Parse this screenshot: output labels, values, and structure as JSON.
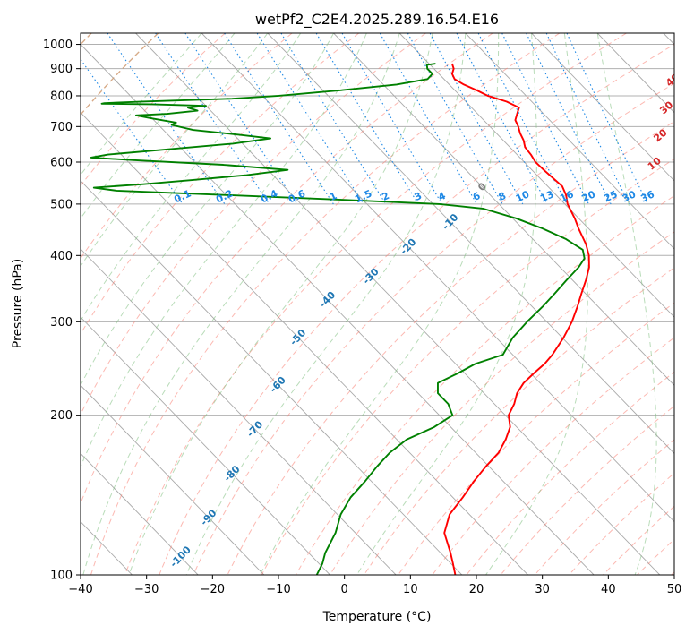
{
  "chart_data": {
    "type": "line",
    "title": "wetPf2_C2E4.2025.289.16.54.E16",
    "xlabel": "Temperature (°C)",
    "ylabel": "Pressure (hPa)",
    "xlim": [
      -40,
      50
    ],
    "ylim": [
      1050,
      100
    ],
    "skew_deg_per_log_decade": 77.8,
    "x_ticks": [
      -40,
      -30,
      -20,
      -10,
      0,
      10,
      20,
      30,
      40,
      50
    ],
    "x_tick_labels": [
      "−40",
      "−30",
      "−20",
      "−10",
      "0",
      "10",
      "20",
      "30",
      "40",
      "50"
    ],
    "y_ticks": [
      1000,
      900,
      800,
      700,
      600,
      500,
      400,
      300,
      200,
      100
    ],
    "y_tick_labels": [
      "1000",
      "900",
      "800",
      "700",
      "600",
      "500",
      "400",
      "300",
      "200",
      "100"
    ],
    "colors": {
      "temperature": "#ff0000",
      "dewpoint": "#008000",
      "isotherm": "#aaaaaa",
      "dry_adiabat": "#fa8072",
      "moist_adiabat": "#80c080",
      "mixing_ratio": "#1e88e5",
      "label_red": "#d62728",
      "label_blue": "#1f77b4",
      "label_gray": "#7f7f7f",
      "brown_adiabat": "#c8a070"
    },
    "series": [
      {
        "name": "Temperature",
        "points": [
          [
            920,
            13.5
          ],
          [
            900,
            13.0
          ],
          [
            880,
            12.0
          ],
          [
            860,
            11.6
          ],
          [
            840,
            12.2
          ],
          [
            820,
            13.3
          ],
          [
            800,
            14.2
          ],
          [
            780,
            16.2
          ],
          [
            760,
            17.2
          ],
          [
            740,
            16.0
          ],
          [
            720,
            14.8
          ],
          [
            700,
            14.3
          ],
          [
            680,
            13.6
          ],
          [
            660,
            13.1
          ],
          [
            640,
            12.3
          ],
          [
            620,
            12.1
          ],
          [
            600,
            11.7
          ],
          [
            580,
            11.8
          ],
          [
            560,
            12.0
          ],
          [
            540,
            12.2
          ],
          [
            520,
            11.5
          ],
          [
            500,
            10.4
          ],
          [
            470,
            9.4
          ],
          [
            450,
            8.5
          ],
          [
            420,
            7.3
          ],
          [
            400,
            6.1
          ],
          [
            380,
            4.4
          ],
          [
            360,
            2.1
          ],
          [
            340,
            -0.5
          ],
          [
            320,
            -3.2
          ],
          [
            300,
            -6.2
          ],
          [
            280,
            -9.8
          ],
          [
            260,
            -14.0
          ],
          [
            250,
            -16.5
          ],
          [
            240,
            -19.5
          ],
          [
            230,
            -22.5
          ],
          [
            220,
            -25.0
          ],
          [
            210,
            -27.0
          ],
          [
            200,
            -29.5
          ],
          [
            190,
            -31.0
          ],
          [
            180,
            -33.5
          ],
          [
            170,
            -36.5
          ],
          [
            160,
            -40.5
          ],
          [
            150,
            -44.5
          ],
          [
            140,
            -48.5
          ],
          [
            130,
            -53.0
          ],
          [
            120,
            -56.5
          ],
          [
            110,
            -58.5
          ],
          [
            105,
            -59.7
          ],
          [
            100,
            -61.0
          ]
        ]
      },
      {
        "name": "Dewpoint",
        "points": [
          [
            920,
            11.0
          ],
          [
            915,
            9.5
          ],
          [
            900,
            9.0
          ],
          [
            880,
            9.0
          ],
          [
            860,
            7.5
          ],
          [
            840,
            2.0
          ],
          [
            820,
            -7.0
          ],
          [
            800,
            -17.5
          ],
          [
            790,
            -25.0
          ],
          [
            785,
            -32.0
          ],
          [
            780,
            -39.0
          ],
          [
            775,
            -45.0
          ],
          [
            773,
            -45.5
          ],
          [
            771,
            -38.0
          ],
          [
            766,
            -30.0
          ],
          [
            760,
            -33.0
          ],
          [
            750,
            -32.0
          ],
          [
            740,
            -37.0
          ],
          [
            735,
            -42.0
          ],
          [
            725,
            -40.0
          ],
          [
            712,
            -37.0
          ],
          [
            705,
            -38.0
          ],
          [
            690,
            -35.5
          ],
          [
            675,
            -29.0
          ],
          [
            665,
            -25.0
          ],
          [
            650,
            -31.5
          ],
          [
            630,
            -45.0
          ],
          [
            620,
            -52.0
          ],
          [
            612,
            -55.0
          ],
          [
            605,
            -49.0
          ],
          [
            593,
            -36.0
          ],
          [
            580,
            -27.0
          ],
          [
            567,
            -34.0
          ],
          [
            555,
            -43.0
          ],
          [
            545,
            -51.0
          ],
          [
            537,
            -59.0
          ],
          [
            530,
            -56.0
          ],
          [
            520,
            -40.0
          ],
          [
            510,
            -24.0
          ],
          [
            500,
            -9.0
          ],
          [
            490,
            -3.0
          ],
          [
            470,
            0.5
          ],
          [
            450,
            3.0
          ],
          [
            430,
            5.0
          ],
          [
            410,
            6.0
          ],
          [
            395,
            5.0
          ],
          [
            380,
            2.8
          ],
          [
            360,
            -0.8
          ],
          [
            340,
            -4.5
          ],
          [
            320,
            -8.5
          ],
          [
            300,
            -13.0
          ],
          [
            280,
            -17.5
          ],
          [
            260,
            -21.5
          ],
          [
            250,
            -27.0
          ],
          [
            240,
            -31.0
          ],
          [
            230,
            -35.5
          ],
          [
            220,
            -37.0
          ],
          [
            210,
            -37.0
          ],
          [
            205,
            -37.5
          ],
          [
            200,
            -38.0
          ],
          [
            190,
            -42.5
          ],
          [
            180,
            -48.5
          ],
          [
            170,
            -53.0
          ],
          [
            160,
            -57.0
          ],
          [
            150,
            -61.0
          ],
          [
            140,
            -65.5
          ],
          [
            130,
            -69.5
          ],
          [
            120,
            -73.0
          ],
          [
            110,
            -77.5
          ],
          [
            105,
            -79.5
          ],
          [
            100,
            -82.0
          ]
        ]
      }
    ],
    "isotherm_labels": [
      {
        "text": "-100",
        "temp": -100,
        "p": 108
      },
      {
        "text": "-90",
        "temp": -90,
        "p": 128
      },
      {
        "text": "-80",
        "temp": -80,
        "p": 155
      },
      {
        "text": "-70",
        "temp": -70,
        "p": 188
      },
      {
        "text": "-60",
        "temp": -60,
        "p": 228
      },
      {
        "text": "-50",
        "temp": -50,
        "p": 280
      },
      {
        "text": "-40",
        "temp": -40,
        "p": 330
      },
      {
        "text": "-30",
        "temp": -30,
        "p": 365
      },
      {
        "text": "-20",
        "temp": -20,
        "p": 415
      },
      {
        "text": "-10",
        "temp": -10,
        "p": 462
      },
      {
        "text": "0",
        "temp": 0,
        "p": 538
      }
    ],
    "dry_adiabat_labels": [
      {
        "text": "10",
        "temp": 29.5,
        "p": 595
      },
      {
        "text": "20",
        "temp": 34.5,
        "p": 672
      },
      {
        "text": "30",
        "temp": 39.5,
        "p": 758
      },
      {
        "text": "40",
        "temp": 44.5,
        "p": 855
      }
    ],
    "mixing_ratio_labels": [
      "0.1",
      "0.2",
      "0.4",
      "0.6",
      "1",
      "1.5",
      "2",
      "3",
      "4",
      "6",
      "8",
      "10",
      "13",
      "16",
      "20",
      "25",
      "30",
      "36"
    ],
    "mixing_ratio_values": [
      0.1,
      0.2,
      0.4,
      0.6,
      1,
      1.5,
      2,
      3,
      4,
      6,
      8,
      10,
      13,
      16,
      20,
      25,
      30,
      36
    ]
  }
}
